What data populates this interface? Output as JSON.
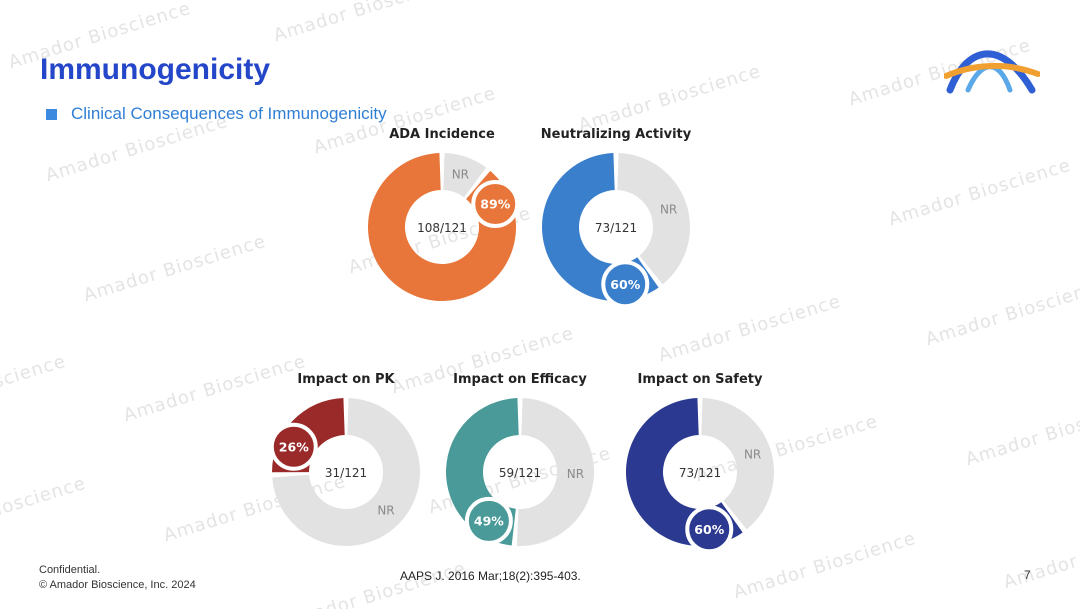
{
  "title": "Immunogenicity",
  "subtitle": "Clinical Consequences of Immunogenicity",
  "watermark": "Amador Bioscience",
  "footer": {
    "confidential": "Confidential.",
    "copyright": "© Amador Bioscience, Inc. 2024",
    "reference": "AAPS J. 2016 Mar;18(2):395-403.",
    "page": "7"
  },
  "colors": {
    "title": "#2446c8",
    "subtitle": "#2f7fd6",
    "nr_segment": "#e2e2e2",
    "nr_text": "#8a8a8a"
  },
  "chart_data": [
    {
      "type": "pie",
      "id": "ada-incidence",
      "title": "ADA Incidence",
      "percent_label": "89%",
      "center_label": "108/121",
      "nr_label": "NR",
      "value": 108,
      "total": 121,
      "color": "#e8763a"
    },
    {
      "type": "pie",
      "id": "neutralizing-activity",
      "title": "Neutralizing Activity",
      "percent_label": "60%",
      "center_label": "73/121",
      "nr_label": "NR",
      "value": 73,
      "total": 121,
      "color": "#3a7fcc"
    },
    {
      "type": "pie",
      "id": "impact-pk",
      "title": "Impact on PK",
      "percent_label": "26%",
      "center_label": "31/121",
      "nr_label": "NR",
      "value": 31,
      "total": 121,
      "color": "#9a2a2a"
    },
    {
      "type": "pie",
      "id": "impact-efficacy",
      "title": "Impact on Efficacy",
      "percent_label": "49%",
      "center_label": "59/121",
      "nr_label": "NR",
      "value": 59,
      "total": 121,
      "color": "#4a9a99"
    },
    {
      "type": "pie",
      "id": "impact-safety",
      "title": "Impact on Safety",
      "percent_label": "60%",
      "center_label": "73/121",
      "nr_label": "NR",
      "value": 73,
      "total": 121,
      "color": "#2b3990"
    }
  ]
}
